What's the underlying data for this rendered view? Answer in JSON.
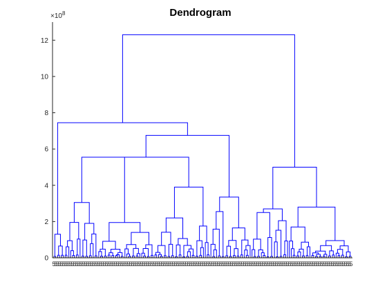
{
  "chart_data": {
    "type": "dendrogram",
    "title": "Dendrogram",
    "xlabel": "",
    "ylabel": "",
    "y_exponent_label": "×10",
    "y_exponent_power": "8",
    "y_scale_factor": 100000000,
    "ylim": [
      0,
      13
    ],
    "yticks": [
      0,
      2,
      4,
      6,
      8,
      10,
      12
    ],
    "leaf_tick_label": "5",
    "n_leaves": 160,
    "line_color": "#0000ff",
    "grid": false,
    "legend": "none",
    "major_merges": [
      {
        "left_group": "left",
        "right_group": "right",
        "height": 12.3
      },
      {
        "left_group": "far-left branch",
        "right_group": "center",
        "height": 7.45
      },
      {
        "left_group": "center-left",
        "right_group": "center-right",
        "height": 6.75
      },
      {
        "left_group": "center-left-a",
        "right_group": "center-left-b",
        "height": 5.55
      },
      {
        "left_group": "right-a",
        "right_group": "right-b",
        "height": 5.0
      },
      {
        "left_group": "center-right-a",
        "right_group": "center-right-b",
        "height": 3.35
      },
      {
        "left_group": "center-left-b1",
        "right_group": "center-left-b2",
        "height": 3.9
      },
      {
        "left_group": "center-left-a1",
        "right_group": "center-left-a2",
        "height": 3.05
      },
      {
        "left_group": "right-b1",
        "right_group": "right-b2",
        "height": 2.8
      },
      {
        "left_group": "right-a1",
        "right_group": "right-a2",
        "height": 2.5
      }
    ]
  }
}
